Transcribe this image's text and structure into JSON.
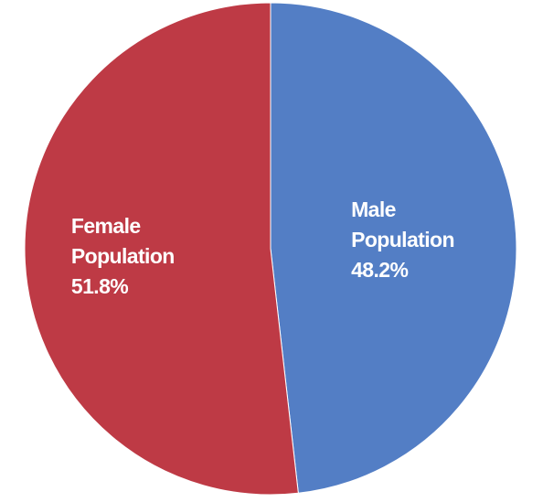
{
  "chart_data": {
    "type": "pie",
    "categories": [
      "Male Population",
      "Female Population"
    ],
    "values": [
      48.2,
      51.8
    ],
    "value_labels": [
      "48.2%",
      "51.8%"
    ],
    "colors": [
      "#537ec5",
      "#be3a45"
    ]
  }
}
